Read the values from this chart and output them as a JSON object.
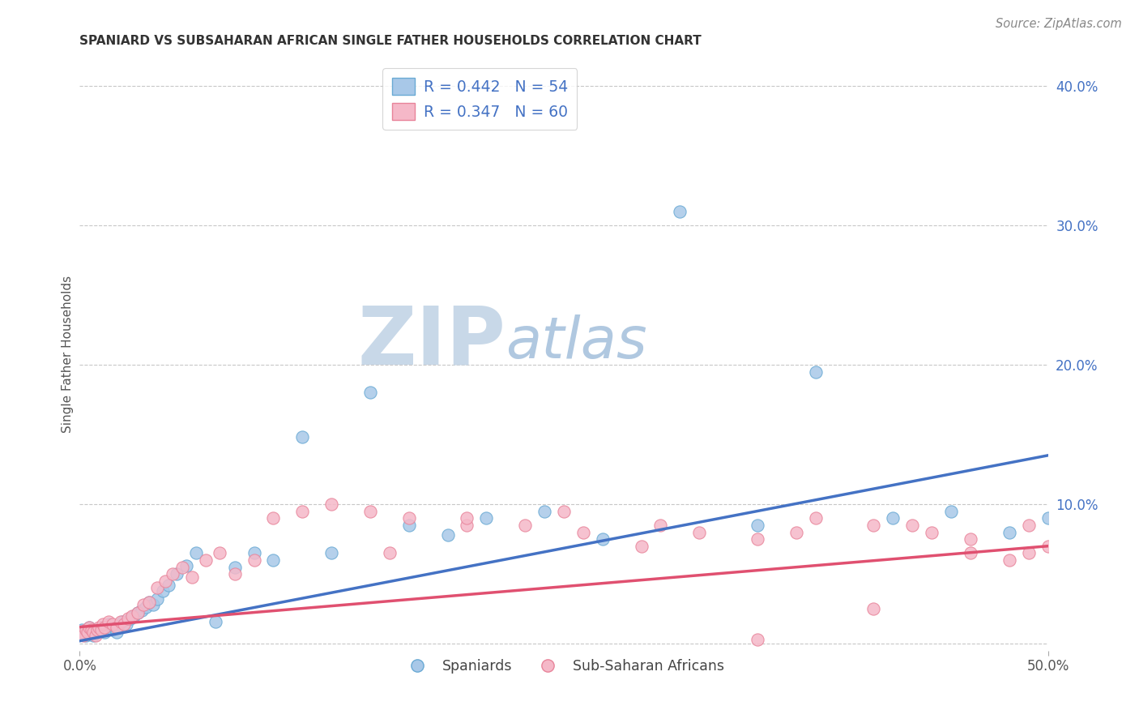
{
  "title": "SPANIARD VS SUBSAHARAN AFRICAN SINGLE FATHER HOUSEHOLDS CORRELATION CHART",
  "source": "Source: ZipAtlas.com",
  "ylabel": "Single Father Households",
  "xlim": [
    0.0,
    0.5
  ],
  "ylim": [
    -0.005,
    0.42
  ],
  "xticks": [
    0.0,
    0.5
  ],
  "xticklabels": [
    "0.0%",
    "50.0%"
  ],
  "yticks_right": [
    0.1,
    0.2,
    0.3,
    0.4
  ],
  "yticklabels_right": [
    "10.0%",
    "20.0%",
    "30.0%",
    "40.0%"
  ],
  "series1_label": "Spaniards",
  "series2_label": "Sub-Saharan Africans",
  "series1_facecolor": "#a8c8e8",
  "series2_facecolor": "#f5b8c8",
  "series1_edgecolor": "#6aaad4",
  "series2_edgecolor": "#e8849a",
  "trendline1_color": "#4472c4",
  "trendline2_color": "#e05070",
  "background_color": "#ffffff",
  "grid_color": "#c8c8c8",
  "watermark_zip_color": "#c8d8e8",
  "watermark_atlas_color": "#b0c8e0",
  "title_color": "#333333",
  "title_fontsize": 11,
  "source_color": "#888888",
  "ylabel_color": "#555555",
  "right_tick_color": "#4472c4",
  "legend_text_color": "#4472c4",
  "legend_face1": "#a8c8e8",
  "legend_face2": "#f5b8c8",
  "R1": 0.442,
  "N1": 54,
  "R2": 0.347,
  "N2": 60,
  "trendline1_x0": 0.0,
  "trendline1_y0": 0.002,
  "trendline1_x1": 0.5,
  "trendline1_y1": 0.135,
  "trendline2_x0": 0.0,
  "trendline2_y0": 0.012,
  "trendline2_x1": 0.5,
  "trendline2_y1": 0.07,
  "series1_x": [
    0.001,
    0.002,
    0.003,
    0.004,
    0.005,
    0.006,
    0.007,
    0.008,
    0.009,
    0.01,
    0.011,
    0.012,
    0.013,
    0.014,
    0.015,
    0.016,
    0.017,
    0.018,
    0.019,
    0.02,
    0.022,
    0.024,
    0.026,
    0.028,
    0.03,
    0.032,
    0.034,
    0.036,
    0.038,
    0.04,
    0.043,
    0.046,
    0.05,
    0.055,
    0.06,
    0.07,
    0.08,
    0.09,
    0.1,
    0.115,
    0.13,
    0.15,
    0.17,
    0.19,
    0.21,
    0.24,
    0.27,
    0.31,
    0.35,
    0.38,
    0.42,
    0.45,
    0.48,
    0.5
  ],
  "series1_y": [
    0.01,
    0.008,
    0.006,
    0.01,
    0.012,
    0.008,
    0.006,
    0.01,
    0.008,
    0.01,
    0.012,
    0.01,
    0.008,
    0.01,
    0.014,
    0.012,
    0.01,
    0.012,
    0.008,
    0.012,
    0.016,
    0.014,
    0.018,
    0.02,
    0.022,
    0.024,
    0.026,
    0.03,
    0.028,
    0.032,
    0.038,
    0.042,
    0.05,
    0.056,
    0.065,
    0.016,
    0.055,
    0.065,
    0.06,
    0.148,
    0.065,
    0.18,
    0.085,
    0.078,
    0.09,
    0.095,
    0.075,
    0.31,
    0.085,
    0.195,
    0.09,
    0.095,
    0.08,
    0.09
  ],
  "series2_x": [
    0.001,
    0.002,
    0.003,
    0.004,
    0.005,
    0.006,
    0.007,
    0.008,
    0.009,
    0.01,
    0.011,
    0.012,
    0.013,
    0.015,
    0.017,
    0.019,
    0.021,
    0.023,
    0.025,
    0.027,
    0.03,
    0.033,
    0.036,
    0.04,
    0.044,
    0.048,
    0.053,
    0.058,
    0.065,
    0.072,
    0.08,
    0.09,
    0.1,
    0.115,
    0.13,
    0.15,
    0.17,
    0.2,
    0.23,
    0.26,
    0.29,
    0.32,
    0.35,
    0.38,
    0.41,
    0.44,
    0.46,
    0.48,
    0.49,
    0.5,
    0.35,
    0.41,
    0.46,
    0.49,
    0.43,
    0.37,
    0.3,
    0.25,
    0.2,
    0.16
  ],
  "series2_y": [
    0.008,
    0.006,
    0.01,
    0.008,
    0.012,
    0.01,
    0.008,
    0.006,
    0.01,
    0.012,
    0.01,
    0.014,
    0.012,
    0.016,
    0.014,
    0.012,
    0.016,
    0.014,
    0.018,
    0.02,
    0.022,
    0.028,
    0.03,
    0.04,
    0.045,
    0.05,
    0.055,
    0.048,
    0.06,
    0.065,
    0.05,
    0.06,
    0.09,
    0.095,
    0.1,
    0.095,
    0.09,
    0.085,
    0.085,
    0.08,
    0.07,
    0.08,
    0.075,
    0.09,
    0.085,
    0.08,
    0.075,
    0.06,
    0.085,
    0.07,
    0.003,
    0.025,
    0.065,
    0.065,
    0.085,
    0.08,
    0.085,
    0.095,
    0.09,
    0.065
  ]
}
